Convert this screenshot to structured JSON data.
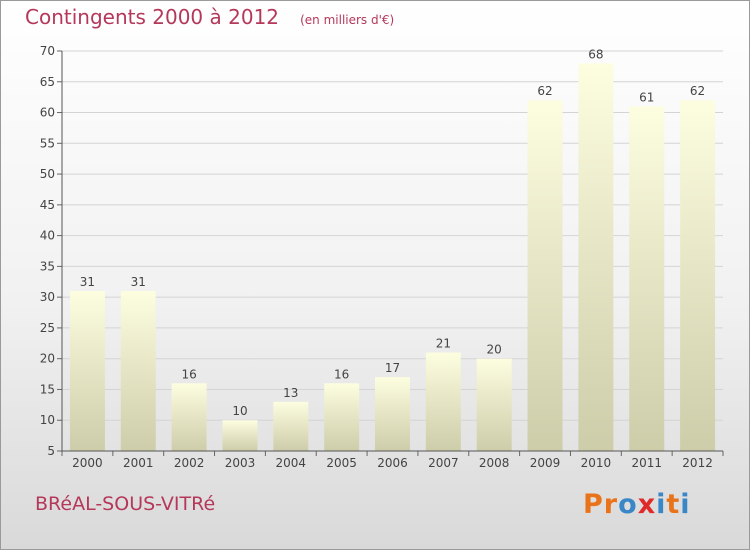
{
  "header": {
    "title": "Contingents 2000 à 2012",
    "unit": "(en milliers d'€)"
  },
  "footer": {
    "commune": "BRéAL-SOUS-VITRé",
    "logo": {
      "letters": [
        "P",
        "r",
        "o",
        "x",
        "i",
        "t",
        "i"
      ]
    }
  },
  "colors": {
    "title": "#b5385a",
    "bar_top": "#fdfde0",
    "bar_bottom": "#cdcdaa",
    "logo": [
      "#e8731a",
      "#e8731a",
      "#3a87c8",
      "#e02a2a",
      "#3a87c8",
      "#e8731a",
      "#3a87c8"
    ]
  },
  "chart_data": {
    "type": "bar",
    "title": "Contingents 2000 à 2012",
    "subtitle": "(en milliers d'€)",
    "categories": [
      "2000",
      "2001",
      "2002",
      "2003",
      "2004",
      "2005",
      "2006",
      "2007",
      "2008",
      "2009",
      "2010",
      "2011",
      "2012"
    ],
    "values": [
      31,
      31,
      16,
      10,
      13,
      16,
      17,
      21,
      20,
      62,
      68,
      61,
      62
    ],
    "ylim": [
      5,
      70
    ],
    "yticks": [
      5,
      10,
      15,
      20,
      25,
      30,
      35,
      40,
      45,
      50,
      55,
      60,
      65,
      70
    ],
    "grid": true,
    "data_labels": true
  }
}
